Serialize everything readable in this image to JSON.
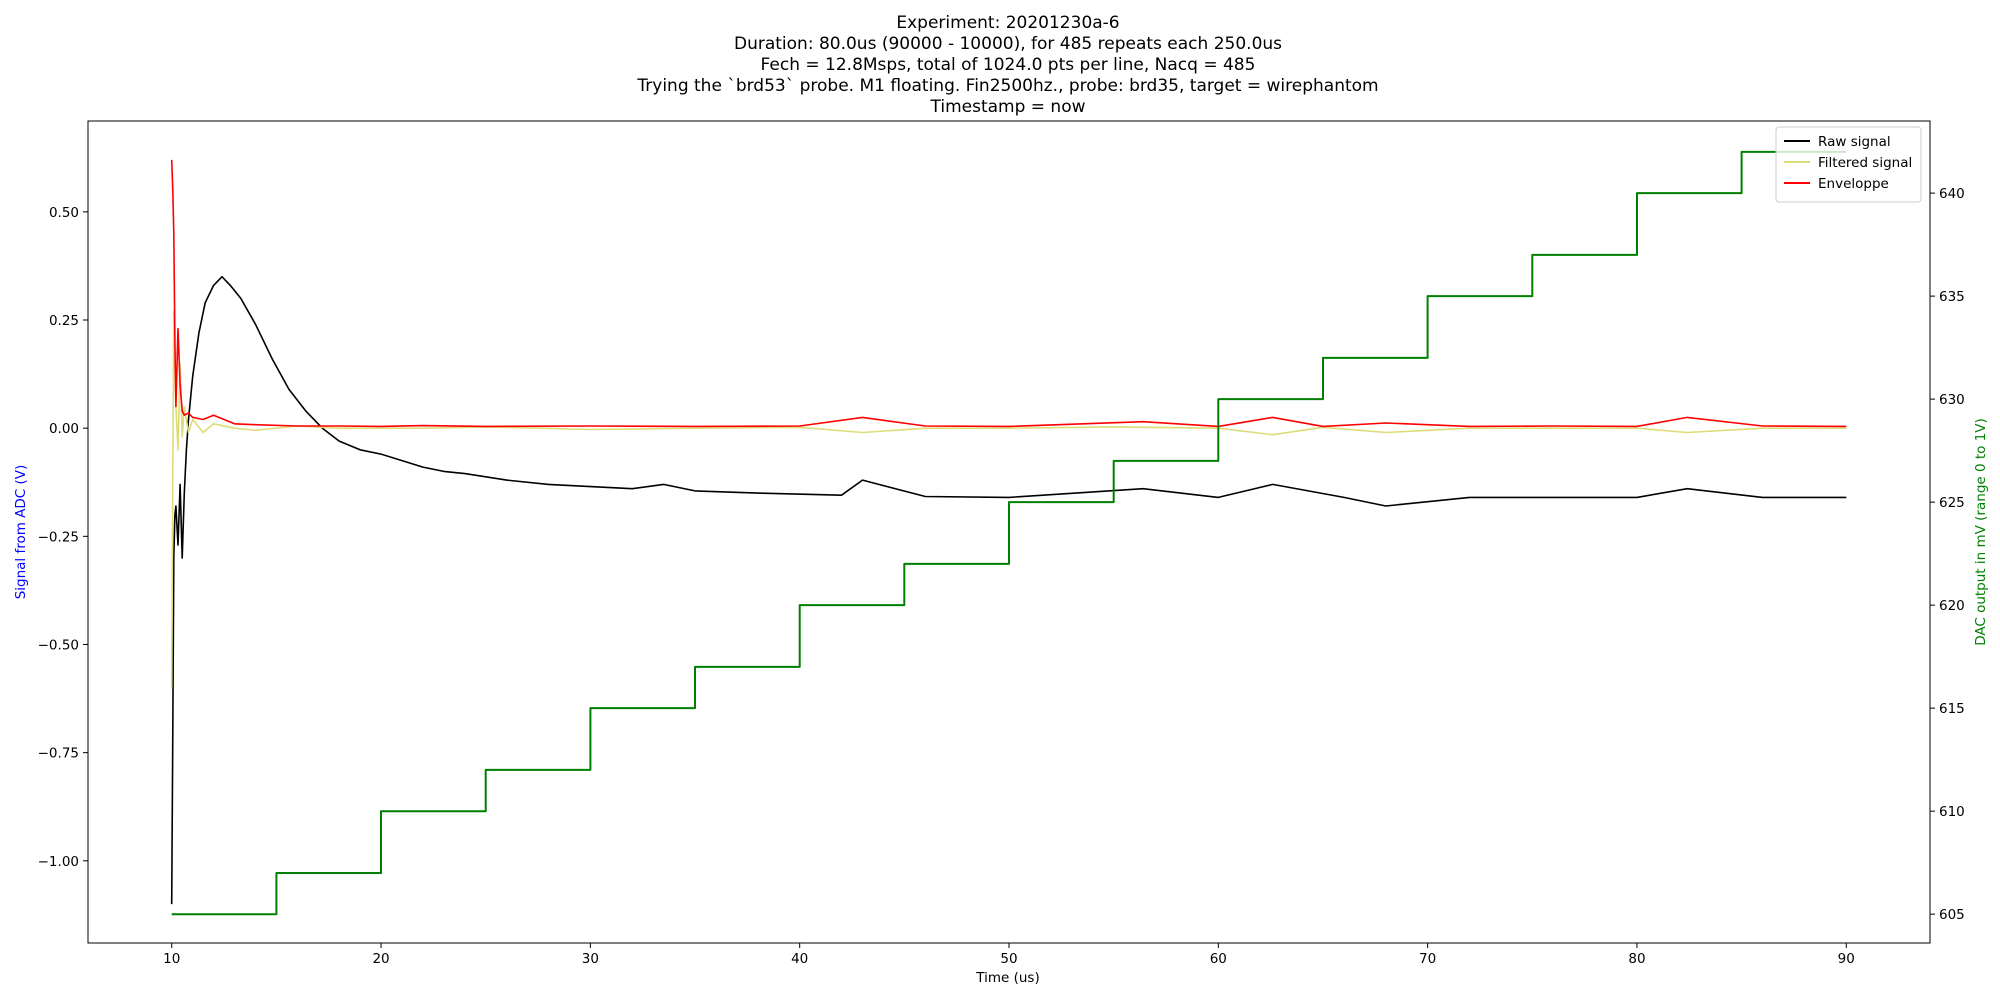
{
  "chart_data": {
    "type": "line",
    "title_lines": [
      "Experiment: 20201230a-6",
      "Duration: 80.0us (90000 - 10000), for 485 repeats each 250.0us",
      "Fech = 12.8Msps, total of 1024.0 pts per line, Nacq = 485",
      "Trying the `brd53` probe. M1 floating. Fin2500hz., probe: brd35, target = wirephantom",
      "Timestamp = now"
    ],
    "xlabel": "Time (us)",
    "ylabel_left": "Signal from ADC (V)",
    "ylabel_right": "DAC output in mV (range 0 to 1V)",
    "xlim": [
      6,
      94
    ],
    "ylim_left": [
      -1.19,
      0.71
    ],
    "ylim_right": [
      603.6,
      643.5
    ],
    "x_ticks": [
      10,
      20,
      30,
      40,
      50,
      60,
      70,
      80,
      90
    ],
    "y_ticks_left": [
      {
        "value": 0.5,
        "label": "0.50"
      },
      {
        "value": 0.25,
        "label": "0.25"
      },
      {
        "value": 0.0,
        "label": "0.00"
      },
      {
        "value": -0.25,
        "label": "−0.25"
      },
      {
        "value": -0.5,
        "label": "−0.50"
      },
      {
        "value": -0.75,
        "label": "−0.75"
      },
      {
        "value": -1.0,
        "label": "−1.00"
      }
    ],
    "y_ticks_right": [
      605,
      610,
      615,
      620,
      625,
      630,
      635,
      640
    ],
    "legend_position": "top-right",
    "series": [
      {
        "name": "Raw signal",
        "axis": "left",
        "color": "#000000",
        "x": [
          10.0,
          10.05,
          10.1,
          10.15,
          10.2,
          10.3,
          10.4,
          10.5,
          10.6,
          10.7,
          10.8,
          11.0,
          11.3,
          11.6,
          12.0,
          12.4,
          12.8,
          13.3,
          14.0,
          14.8,
          15.6,
          16.4,
          17.2,
          18.0,
          19.0,
          20.0,
          21.0,
          22.0,
          23.0,
          24.0,
          26.0,
          28.0,
          30.0,
          32.0,
          33.5,
          35.0,
          38.0,
          42.0,
          43.0,
          46.0,
          50.0,
          56.4,
          60.0,
          62.6,
          66.0,
          68.0,
          72.0,
          76.0,
          80.0,
          82.4,
          86.0,
          90.0
        ],
        "y": [
          -1.1,
          -0.7,
          -0.3,
          -0.2,
          -0.18,
          -0.27,
          -0.13,
          -0.3,
          -0.15,
          -0.05,
          0.02,
          0.12,
          0.22,
          0.29,
          0.33,
          0.35,
          0.33,
          0.3,
          0.24,
          0.16,
          0.09,
          0.04,
          0.0,
          -0.03,
          -0.05,
          -0.06,
          -0.075,
          -0.09,
          -0.1,
          -0.105,
          -0.12,
          -0.13,
          -0.135,
          -0.14,
          -0.13,
          -0.145,
          -0.15,
          -0.155,
          -0.12,
          -0.158,
          -0.16,
          -0.14,
          -0.16,
          -0.13,
          -0.16,
          -0.18,
          -0.16,
          -0.16,
          -0.16,
          -0.14,
          -0.16,
          -0.16
        ]
      },
      {
        "name": "Filtered signal",
        "axis": "left",
        "color": "#dddd77",
        "x": [
          10.0,
          10.05,
          10.1,
          10.2,
          10.3,
          10.4,
          10.5,
          10.6,
          10.8,
          11.0,
          11.5,
          12.0,
          13.0,
          14.0,
          16.0,
          18.0,
          22.0,
          25.0,
          30.0,
          35.0,
          40.0,
          43.0,
          46.0,
          50.0,
          55.0,
          60.0,
          62.6,
          65.0,
          68.0,
          72.0,
          76.0,
          80.0,
          82.4,
          86.0,
          90.0
        ],
        "y": [
          -0.6,
          -0.1,
          0.27,
          0.05,
          -0.05,
          0.15,
          -0.02,
          0.05,
          -0.01,
          0.02,
          -0.01,
          0.01,
          0.0,
          -0.005,
          0.005,
          0.0,
          0.0,
          0.003,
          -0.003,
          0.0,
          0.002,
          -0.01,
          0.0,
          0.0,
          0.003,
          0.0,
          -0.015,
          0.002,
          -0.01,
          0.0,
          0.0,
          0.0,
          -0.01,
          0.0,
          0.0
        ]
      },
      {
        "name": "Enveloppe",
        "axis": "left",
        "color": "#ff0000",
        "x": [
          10.0,
          10.05,
          10.1,
          10.15,
          10.2,
          10.3,
          10.4,
          10.5,
          10.6,
          10.8,
          11.0,
          11.5,
          12.0,
          13.0,
          14.0,
          16.0,
          18.0,
          20.0,
          22.0,
          25.0,
          30.0,
          35.0,
          40.0,
          43.0,
          46.0,
          50.0,
          56.4,
          60.0,
          62.6,
          65.0,
          68.0,
          72.0,
          76.0,
          80.0,
          82.4,
          86.0,
          90.0
        ],
        "y": [
          0.62,
          0.55,
          0.45,
          0.2,
          0.05,
          0.23,
          0.1,
          0.04,
          0.03,
          0.035,
          0.025,
          0.02,
          0.03,
          0.01,
          0.008,
          0.005,
          0.005,
          0.004,
          0.006,
          0.004,
          0.005,
          0.004,
          0.005,
          0.025,
          0.005,
          0.004,
          0.015,
          0.004,
          0.025,
          0.004,
          0.012,
          0.004,
          0.005,
          0.004,
          0.025,
          0.005,
          0.004
        ]
      },
      {
        "name": "",
        "axis": "right",
        "color": "#008000",
        "step": true,
        "x": [
          10,
          15,
          20,
          25,
          30,
          35,
          40,
          45,
          50,
          55,
          60,
          65,
          70,
          75,
          80,
          85,
          90
        ],
        "y": [
          605,
          607,
          610,
          612,
          615,
          617,
          620,
          622,
          625,
          627,
          630,
          632,
          635,
          637,
          640,
          642,
          642
        ]
      }
    ],
    "colors": {
      "ylabel_left": "#0000ff",
      "ylabel_right": "#008000"
    }
  }
}
